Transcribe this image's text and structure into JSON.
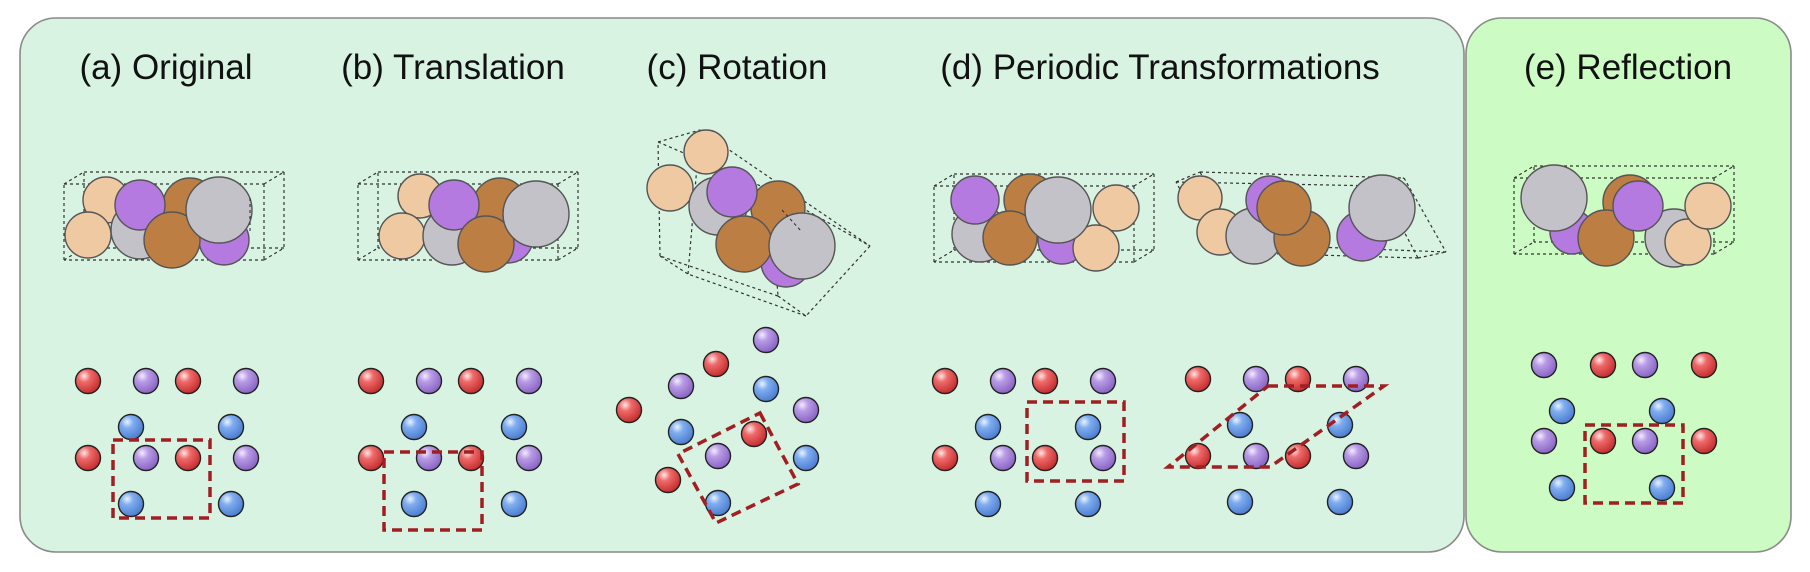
{
  "colors": {
    "group_fill": "#d8f3e1",
    "reflection_fill": "#ccfbc4",
    "panel_border": "#8a8a8a",
    "cell_dashed": "#a11f22",
    "box_edge": "#333333",
    "atom_peach": "#efc9a2",
    "atom_purple": "#b47ae0",
    "atom_brown": "#bd7e43",
    "atom_gray": "#c2c2c8",
    "dot_red": "#e04848",
    "dot_purple": "#a98ad8",
    "dot_blue": "#6d9fe6"
  },
  "panels": [
    {
      "id": "original",
      "title": "(a) Original"
    },
    {
      "id": "translation",
      "title": "(b) Translation"
    },
    {
      "id": "rotation",
      "title": "(c) Rotation"
    },
    {
      "id": "periodic",
      "title": "(d) Periodic Transformations"
    },
    {
      "id": "reflection",
      "title": "(e) Reflection"
    }
  ]
}
